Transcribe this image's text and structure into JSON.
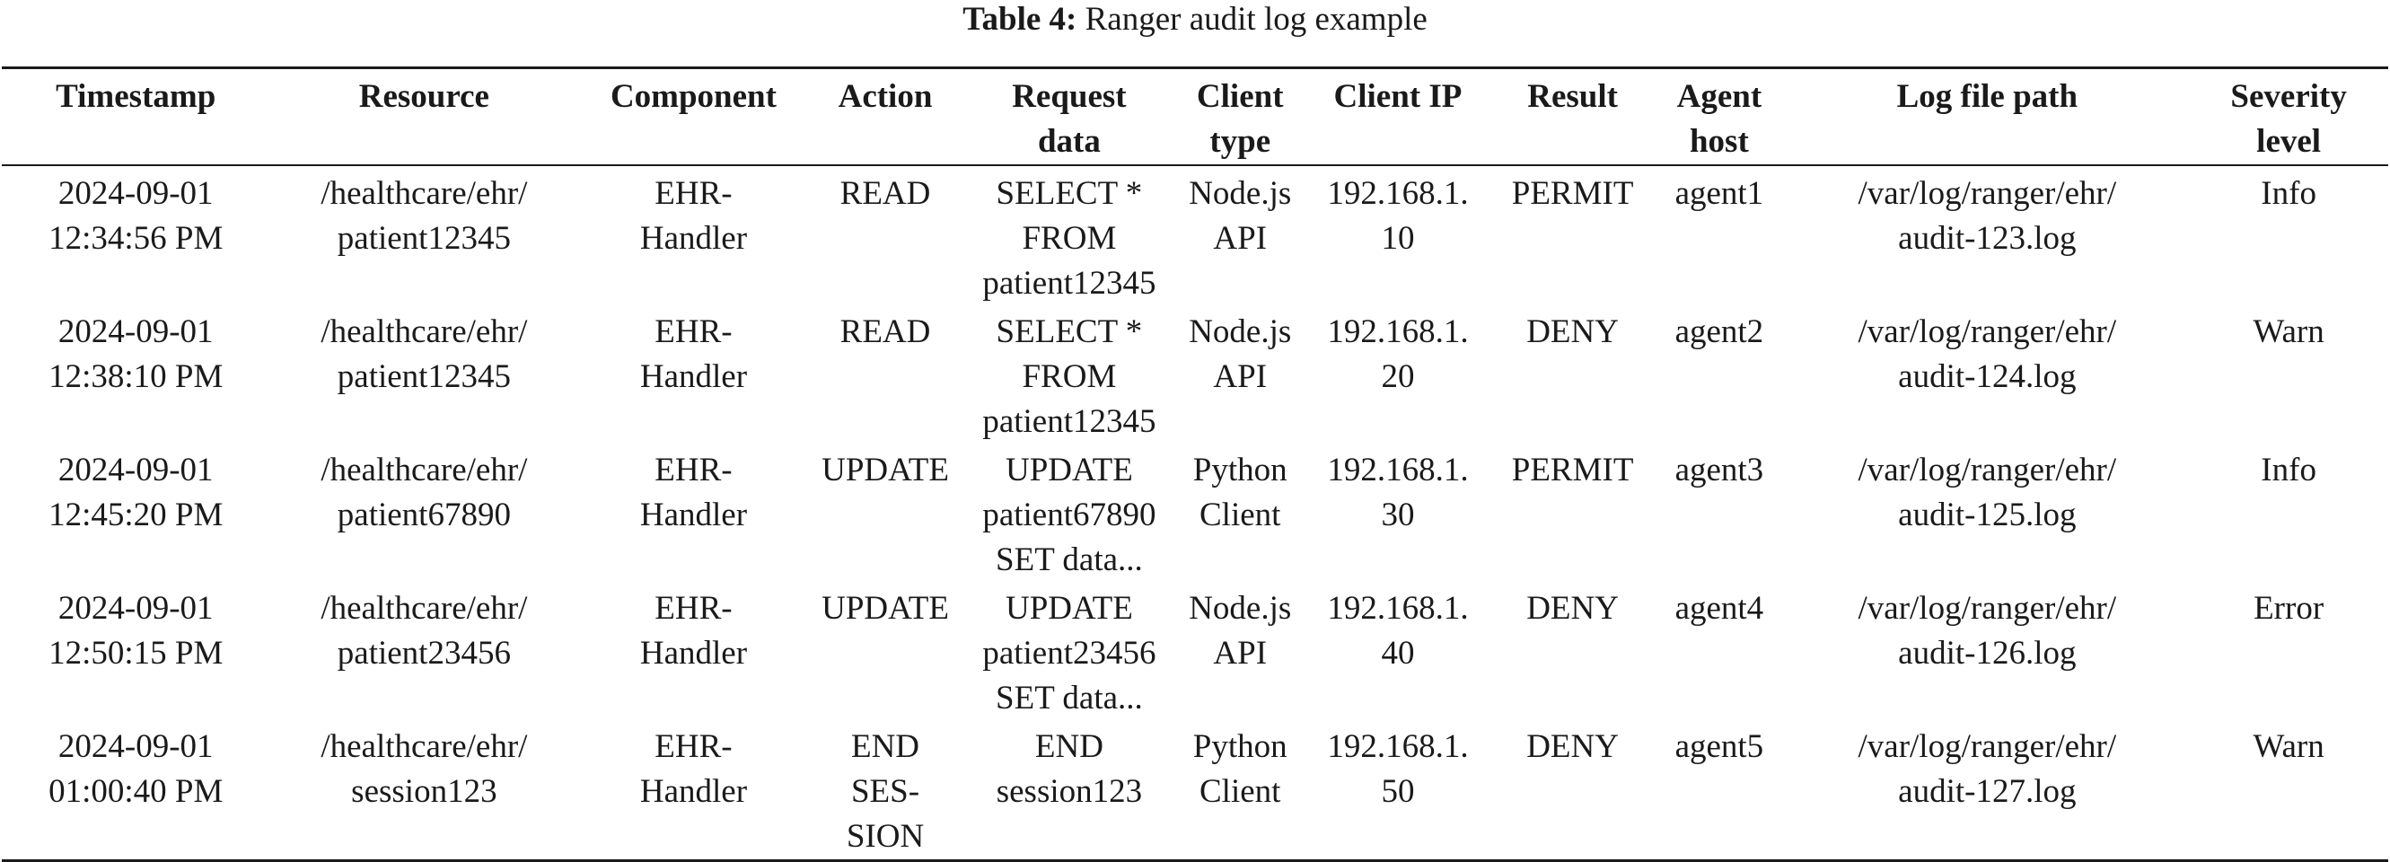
{
  "caption": {
    "label": "Table 4:",
    "text": "Ranger audit log example"
  },
  "columns": [
    "Timestamp",
    "Resource",
    "Component",
    "Action",
    "Request\ndata",
    "Client\ntype",
    "Client IP",
    "Result",
    "Agent\nhost",
    "Log file path",
    "Severity\nlevel"
  ],
  "rows": [
    [
      "2024-09-01\n12:34:56 PM",
      "/healthcare/ehr/\npatient12345",
      "EHR-\nHandler",
      "READ",
      "SELECT *\nFROM\npatient12345",
      "Node.js\nAPI",
      "192.168.1.\n10",
      "PERMIT",
      "agent1",
      "/var/log/ranger/ehr/\naudit-123.log",
      "Info"
    ],
    [
      "2024-09-01\n12:38:10 PM",
      "/healthcare/ehr/\npatient12345",
      "EHR-\nHandler",
      "READ",
      "SELECT *\nFROM\npatient12345",
      "Node.js\nAPI",
      "192.168.1.\n20",
      "DENY",
      "agent2",
      "/var/log/ranger/ehr/\naudit-124.log",
      "Warn"
    ],
    [
      "2024-09-01\n12:45:20 PM",
      "/healthcare/ehr/\npatient67890",
      "EHR-\nHandler",
      "UPDATE",
      "UPDATE\npatient67890\nSET data...",
      "Python\nClient",
      "192.168.1.\n30",
      "PERMIT",
      "agent3",
      "/var/log/ranger/ehr/\naudit-125.log",
      "Info"
    ],
    [
      "2024-09-01\n12:50:15 PM",
      "/healthcare/ehr/\npatient23456",
      "EHR-\nHandler",
      "UPDATE",
      "UPDATE\npatient23456\nSET data...",
      "Node.js\nAPI",
      "192.168.1.\n40",
      "DENY",
      "agent4",
      "/var/log/ranger/ehr/\naudit-126.log",
      "Error"
    ],
    [
      "2024-09-01\n01:00:40 PM",
      "/healthcare/ehr/\nsession123",
      "EHR-\nHandler",
      "END\nSES-\nSION",
      "END\nsession123",
      "Python\nClient",
      "192.168.1.\n50",
      "DENY",
      "agent5",
      "/var/log/ranger/ehr/\naudit-127.log",
      "Warn"
    ]
  ]
}
